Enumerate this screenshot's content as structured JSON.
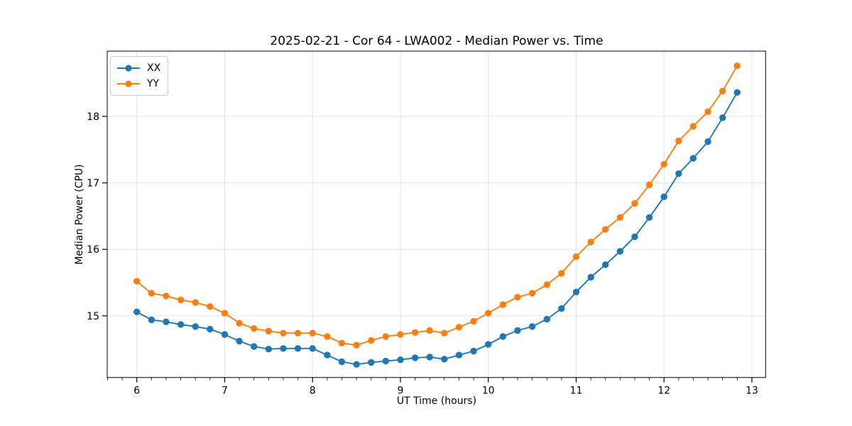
{
  "chart_data": {
    "type": "line",
    "title": "2025-02-21 - Cor 64 - LWA002 - Median Power vs. Time",
    "xlabel": "UT Time (hours)",
    "ylabel": "Median Power (CPU)",
    "xlim": [
      5.663,
      13.156
    ],
    "ylim": [
      14.073,
      18.981
    ],
    "xticks": [
      6,
      7,
      8,
      9,
      10,
      11,
      12,
      13
    ],
    "xtick_labels": [
      "6",
      "7",
      "8",
      "9",
      "10",
      "11",
      "12",
      "13"
    ],
    "yticks": [
      15,
      16,
      17,
      18
    ],
    "ytick_labels": [
      "15",
      "16",
      "17",
      "18"
    ],
    "x_minor_step": 0.16667,
    "grid": true,
    "grid_color": "#e1e1e1",
    "legend_position": "upper left",
    "marker": "circle",
    "x": [
      6.0,
      6.167,
      6.333,
      6.5,
      6.667,
      6.833,
      7.0,
      7.167,
      7.333,
      7.5,
      7.667,
      7.833,
      8.0,
      8.167,
      8.333,
      8.5,
      8.667,
      8.833,
      9.0,
      9.167,
      9.333,
      9.5,
      9.667,
      9.833,
      10.0,
      10.167,
      10.333,
      10.5,
      10.667,
      10.833,
      11.0,
      11.167,
      11.333,
      11.5,
      11.667,
      11.833,
      12.0,
      12.167,
      12.333,
      12.5,
      12.667,
      12.833
    ],
    "series": [
      {
        "name": "XX",
        "color": "#1f77b4",
        "values": [
          15.06,
          14.94,
          14.91,
          14.87,
          14.84,
          14.8,
          14.72,
          14.62,
          14.54,
          14.5,
          14.51,
          14.51,
          14.51,
          14.41,
          14.31,
          14.27,
          14.3,
          14.32,
          14.34,
          14.37,
          14.38,
          14.35,
          14.41,
          14.47,
          14.57,
          14.69,
          14.78,
          14.84,
          14.95,
          15.11,
          15.36,
          15.58,
          15.77,
          15.97,
          16.19,
          16.48,
          16.79,
          17.14,
          17.37,
          17.62,
          17.98,
          18.36
        ]
      },
      {
        "name": "YY",
        "color": "#ff7f0e",
        "values": [
          15.52,
          15.34,
          15.3,
          15.24,
          15.2,
          15.14,
          15.04,
          14.89,
          14.81,
          14.77,
          14.74,
          14.74,
          14.74,
          14.69,
          14.59,
          14.56,
          14.63,
          14.69,
          14.72,
          14.75,
          14.78,
          14.74,
          14.83,
          14.92,
          15.04,
          15.17,
          15.28,
          15.34,
          15.47,
          15.64,
          15.89,
          16.11,
          16.3,
          16.48,
          16.69,
          16.97,
          17.28,
          17.63,
          17.85,
          18.07,
          18.38,
          18.76
        ]
      }
    ]
  }
}
